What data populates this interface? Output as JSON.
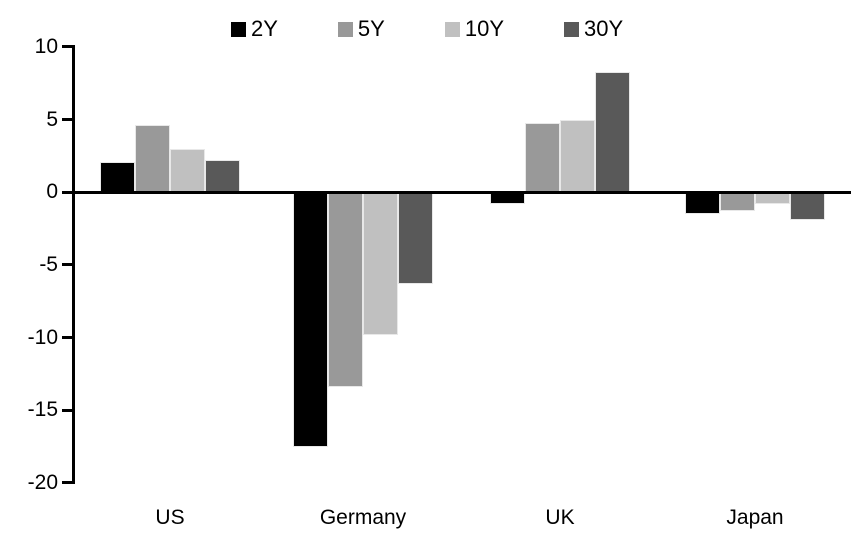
{
  "chart_data": {
    "type": "bar",
    "title": "",
    "xlabel": "",
    "ylabel": "",
    "categories": [
      "US",
      "Germany",
      "UK",
      "Japan"
    ],
    "series": [
      {
        "name": "2Y",
        "color": "#000000",
        "values": [
          2.1,
          -17.5,
          -0.8,
          -1.5
        ]
      },
      {
        "name": "5Y",
        "color": "#999999",
        "values": [
          4.6,
          -13.4,
          4.8,
          -1.3
        ]
      },
      {
        "name": "10Y",
        "color": "#c0c0c0",
        "values": [
          3.0,
          -9.8,
          5.0,
          -0.8
        ]
      },
      {
        "name": "30Y",
        "color": "#595959",
        "values": [
          2.2,
          -6.3,
          8.3,
          -1.9
        ]
      }
    ],
    "ylim": [
      -20,
      10
    ],
    "yticks": [
      10,
      5,
      0,
      -5,
      -10,
      -15,
      -20
    ],
    "legend_position": "top",
    "grid": false,
    "axis_color": "#000000",
    "background_color": "#ffffff"
  }
}
